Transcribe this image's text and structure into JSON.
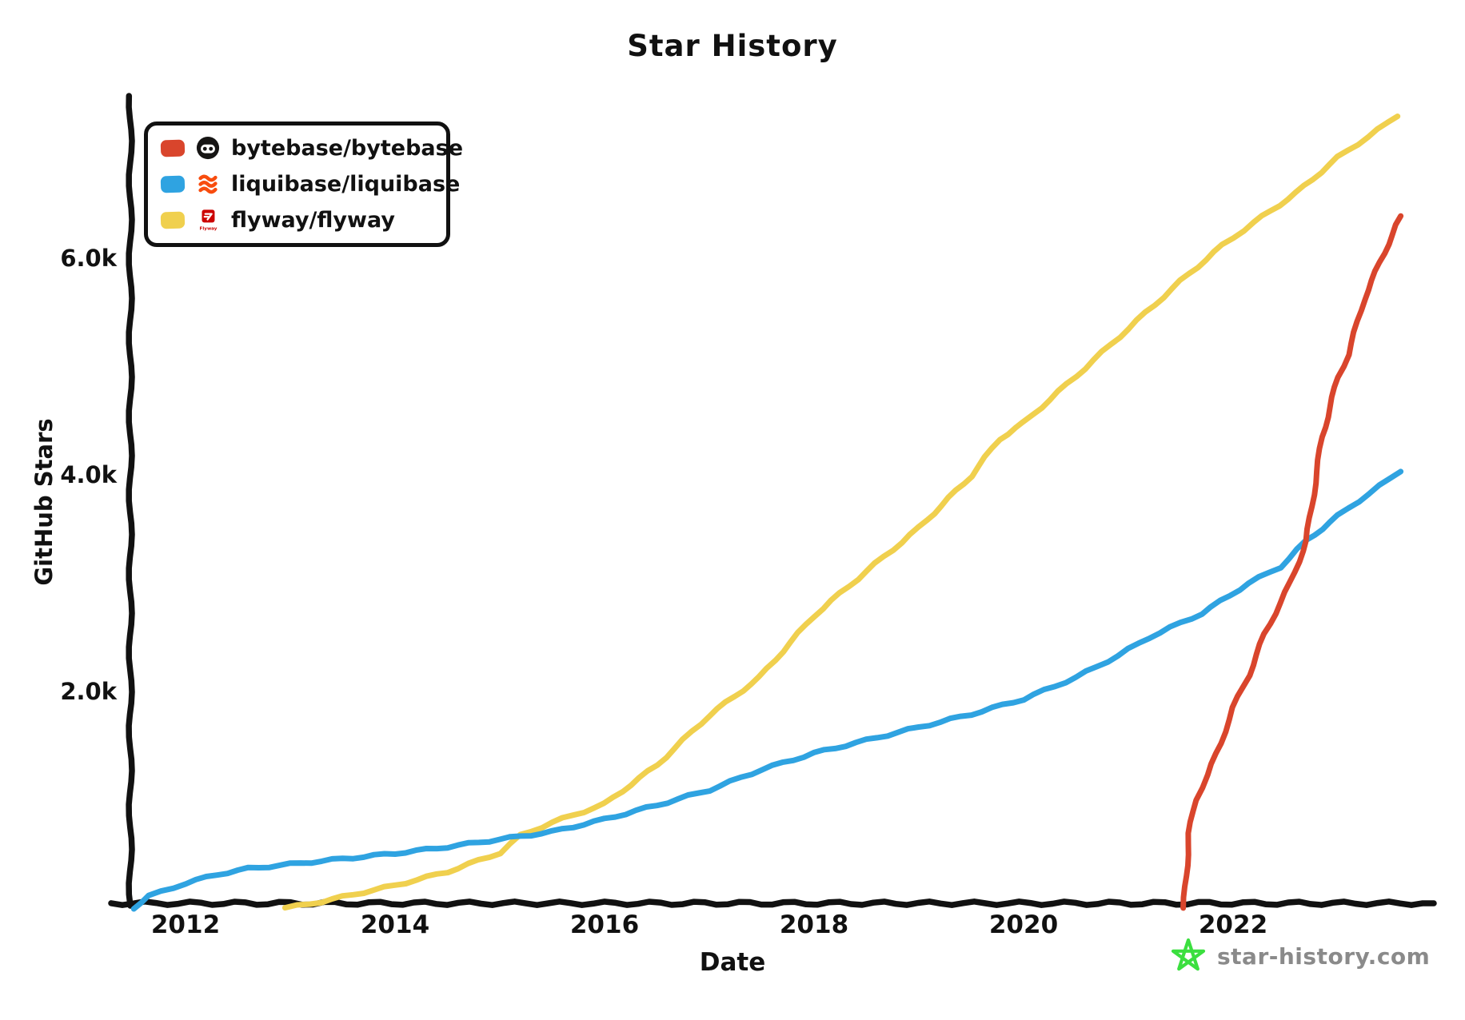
{
  "title": "Star History",
  "colors": {
    "bytebase": "#d9452c",
    "liquibase": "#2fa3e1",
    "flyway": "#f0d04e",
    "axis": "#111111",
    "watermark_text": "#8a8a8a",
    "watermark_star": "#3bdf3f",
    "liquibase_logo": "#f84c0e",
    "flyway_logo": "#cc0200"
  },
  "legend": {
    "items": [
      {
        "label": "bytebase/bytebase",
        "icon": "bytebase-logo",
        "color_key": "bytebase"
      },
      {
        "label": "liquibase/liquibase",
        "icon": "liquibase-logo",
        "color_key": "liquibase"
      },
      {
        "label": "flyway/flyway",
        "icon": "flyway-logo",
        "color_key": "flyway",
        "logo_text": "Flyway"
      }
    ]
  },
  "axes": {
    "xlabel": "Date",
    "ylabel": "GitHub Stars",
    "x_ticks": [
      {
        "label": "2012",
        "year": 2012
      },
      {
        "label": "2014",
        "year": 2014
      },
      {
        "label": "2016",
        "year": 2016
      },
      {
        "label": "2018",
        "year": 2018
      },
      {
        "label": "2020",
        "year": 2020
      },
      {
        "label": "2022",
        "year": 2022
      }
    ],
    "y_ticks": [
      {
        "label": "2.0k",
        "value": 2000
      },
      {
        "label": "4.0k",
        "value": 4000
      },
      {
        "label": "6.0k",
        "value": 6000
      }
    ]
  },
  "watermark": {
    "text": "star-history.com",
    "icon": "star-doodle-icon"
  },
  "chart_data": {
    "type": "line",
    "title": "Star History",
    "xlabel": "Date",
    "ylabel": "GitHub Stars",
    "x_unit": "year",
    "xlim": [
      2011.4,
      2023.8
    ],
    "ylim": [
      0,
      7450
    ],
    "grid": false,
    "legend_position": "top-left",
    "series": [
      {
        "name": "flyway/flyway",
        "color_key": "flyway",
        "points": [
          [
            2012.95,
            0
          ],
          [
            2013.3,
            60
          ],
          [
            2013.6,
            125
          ],
          [
            2014.0,
            210
          ],
          [
            2014.5,
            335
          ],
          [
            2015.0,
            510
          ],
          [
            2015.2,
            670
          ],
          [
            2015.5,
            790
          ],
          [
            2016.0,
            960
          ],
          [
            2016.5,
            1320
          ],
          [
            2017.0,
            1780
          ],
          [
            2017.48,
            2130
          ],
          [
            2018.0,
            2700
          ],
          [
            2018.5,
            3110
          ],
          [
            2019.0,
            3510
          ],
          [
            2019.5,
            3990
          ],
          [
            2019.77,
            4330
          ],
          [
            2020.0,
            4480
          ],
          [
            2020.5,
            4910
          ],
          [
            2021.0,
            5350
          ],
          [
            2021.5,
            5790
          ],
          [
            2021.9,
            6120
          ],
          [
            2022.2,
            6330
          ],
          [
            2022.6,
            6600
          ],
          [
            2023.0,
            6930
          ],
          [
            2023.57,
            7310
          ]
        ]
      },
      {
        "name": "liquibase/liquibase",
        "color_key": "liquibase",
        "points": [
          [
            2011.5,
            0
          ],
          [
            2011.65,
            110
          ],
          [
            2012.0,
            230
          ],
          [
            2012.3,
            310
          ],
          [
            2012.6,
            365
          ],
          [
            2013.0,
            405
          ],
          [
            2013.5,
            455
          ],
          [
            2014.0,
            505
          ],
          [
            2014.5,
            565
          ],
          [
            2015.0,
            635
          ],
          [
            2015.5,
            705
          ],
          [
            2016.0,
            820
          ],
          [
            2016.5,
            950
          ],
          [
            2017.0,
            1090
          ],
          [
            2017.5,
            1280
          ],
          [
            2018.0,
            1430
          ],
          [
            2018.5,
            1550
          ],
          [
            2019.0,
            1670
          ],
          [
            2019.5,
            1790
          ],
          [
            2020.0,
            1930
          ],
          [
            2020.5,
            2130
          ],
          [
            2020.9,
            2330
          ],
          [
            2021.2,
            2500
          ],
          [
            2021.7,
            2720
          ],
          [
            2022.15,
            3000
          ],
          [
            2022.45,
            3150
          ],
          [
            2022.7,
            3390
          ],
          [
            2023.0,
            3620
          ],
          [
            2023.3,
            3830
          ],
          [
            2023.6,
            4030
          ]
        ]
      },
      {
        "name": "bytebase/bytebase",
        "color_key": "bytebase",
        "points": [
          [
            2021.53,
            0
          ],
          [
            2021.58,
            690
          ],
          [
            2021.64,
            1000
          ],
          [
            2021.76,
            1230
          ],
          [
            2021.88,
            1520
          ],
          [
            2022.0,
            1850
          ],
          [
            2022.15,
            2150
          ],
          [
            2022.3,
            2530
          ],
          [
            2022.55,
            3010
          ],
          [
            2022.7,
            3390
          ],
          [
            2022.85,
            4350
          ],
          [
            2023.0,
            4900
          ],
          [
            2023.1,
            5110
          ],
          [
            2023.25,
            5620
          ],
          [
            2023.4,
            5960
          ],
          [
            2023.6,
            6390
          ]
        ]
      }
    ]
  }
}
